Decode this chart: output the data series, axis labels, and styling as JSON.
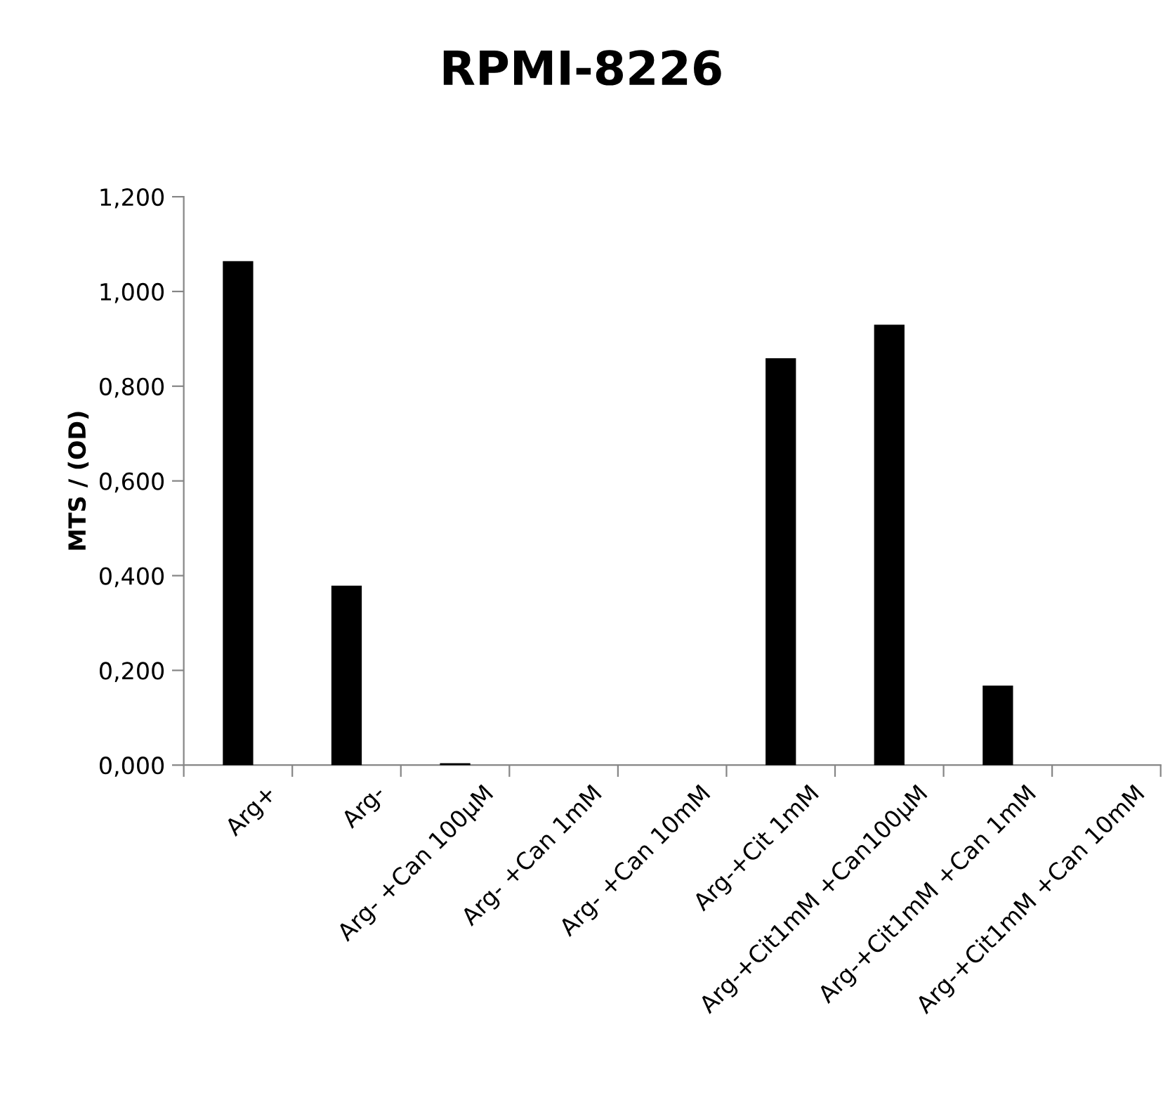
{
  "chart_data": {
    "type": "bar",
    "title": "RPMI-8226",
    "ylabel": "MTS / (OD)",
    "categories": [
      "Arg+",
      "Arg-",
      "Arg- +Can 100µM",
      "Arg- +Can 1mM",
      "Arg- +Can 10mM",
      "Arg-+Cit 1mM",
      "Arg-+Cit1mM +Can100µM",
      "Arg-+Cit1mM +Can 1mM",
      "Arg-+Cit1mM +Can 10mM"
    ],
    "values": [
      1.064,
      0.379,
      0.004,
      null,
      null,
      0.859,
      0.93,
      0.168,
      0.0
    ],
    "color": "#000000",
    "ylim": [
      0,
      1.2
    ],
    "yticks": [
      {
        "value": 0,
        "label": "0,000"
      },
      {
        "value": 0.2,
        "label": "0,200"
      },
      {
        "value": 0.4,
        "label": "0,400"
      },
      {
        "value": 0.6,
        "label": "0,600"
      },
      {
        "value": 0.8,
        "label": "0,800"
      },
      {
        "value": 1.0,
        "label": "1,000"
      },
      {
        "value": 1.2,
        "label": "1,200"
      }
    ],
    "grid": false,
    "legend": false
  }
}
